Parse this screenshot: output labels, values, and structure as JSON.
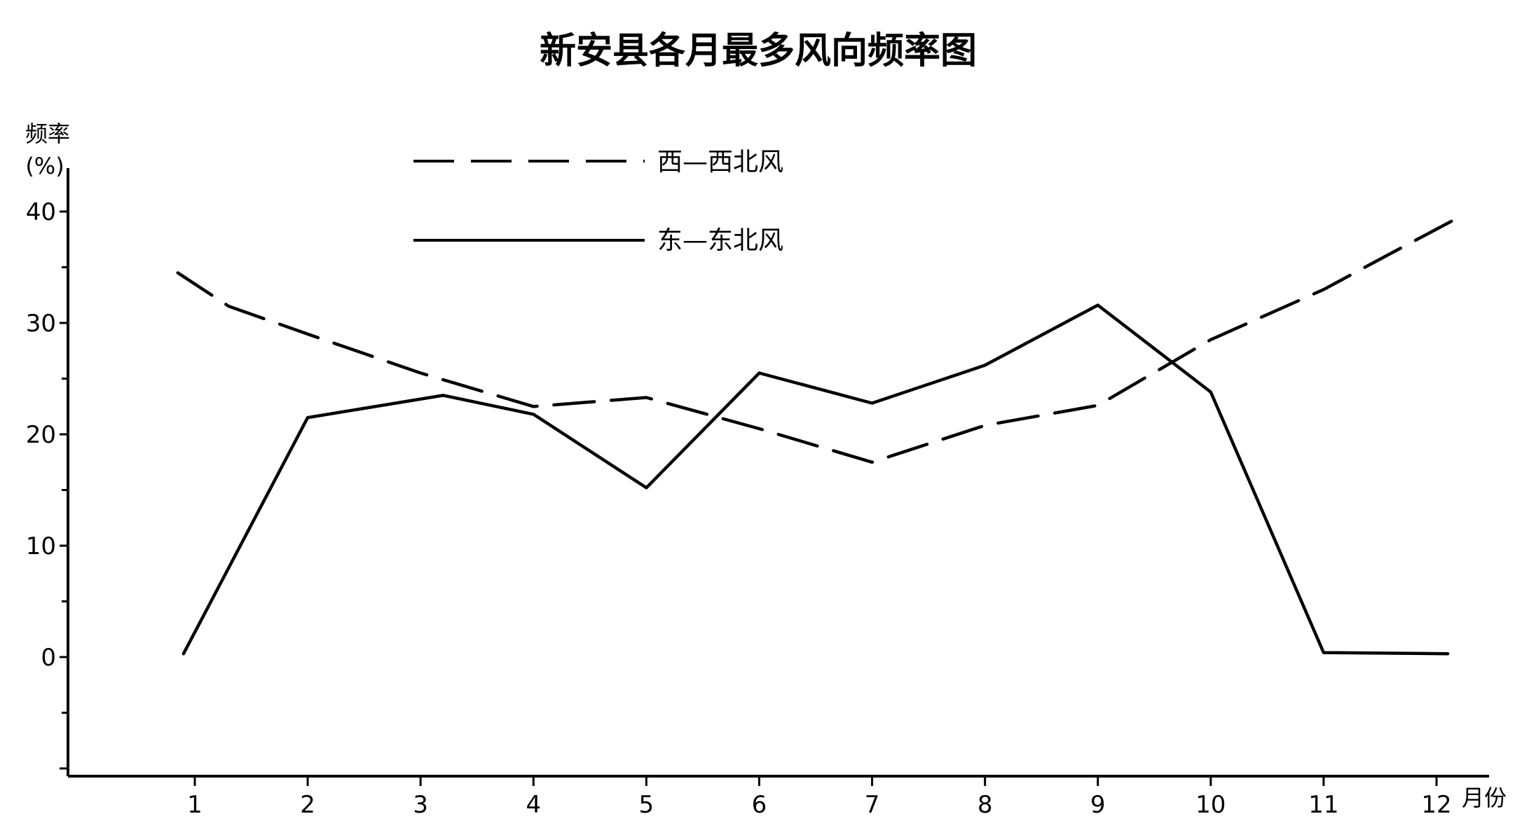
{
  "chart_data": {
    "type": "line",
    "title": "新安县各月最多风向频率图",
    "ylabel_line1": "频率",
    "ylabel_line2": "(%)",
    "xlabel": "月份",
    "categories": [
      "1",
      "2",
      "3",
      "4",
      "5",
      "6",
      "7",
      "8",
      "9",
      "10",
      "11",
      "12"
    ],
    "ylim": [
      -10,
      40
    ],
    "yticks": [
      0,
      10,
      20,
      30,
      40
    ],
    "grid": false,
    "legend_placement": "top-center",
    "series": [
      {
        "name": "西—西北风",
        "style": "dashed",
        "color": "#000000",
        "x": [
          0.85,
          1.3,
          2,
          3,
          4,
          5,
          6,
          7,
          8,
          9,
          10,
          11,
          11.55,
          12.2
        ],
        "values": [
          34.5,
          31.5,
          29,
          25.5,
          22.5,
          23.3,
          20.5,
          17.5,
          20.8,
          22.6,
          28.5,
          33,
          36,
          39.5
        ]
      },
      {
        "name": "东—东北风",
        "style": "solid",
        "color": "#000000",
        "x": [
          0.9,
          2,
          3.2,
          4,
          5,
          6,
          7,
          8,
          9,
          10,
          11,
          12.1
        ],
        "values": [
          0.3,
          21.5,
          23.5,
          21.8,
          15.2,
          25.5,
          22.8,
          26.2,
          31.6,
          23.8,
          0.4,
          0.3
        ]
      }
    ]
  }
}
